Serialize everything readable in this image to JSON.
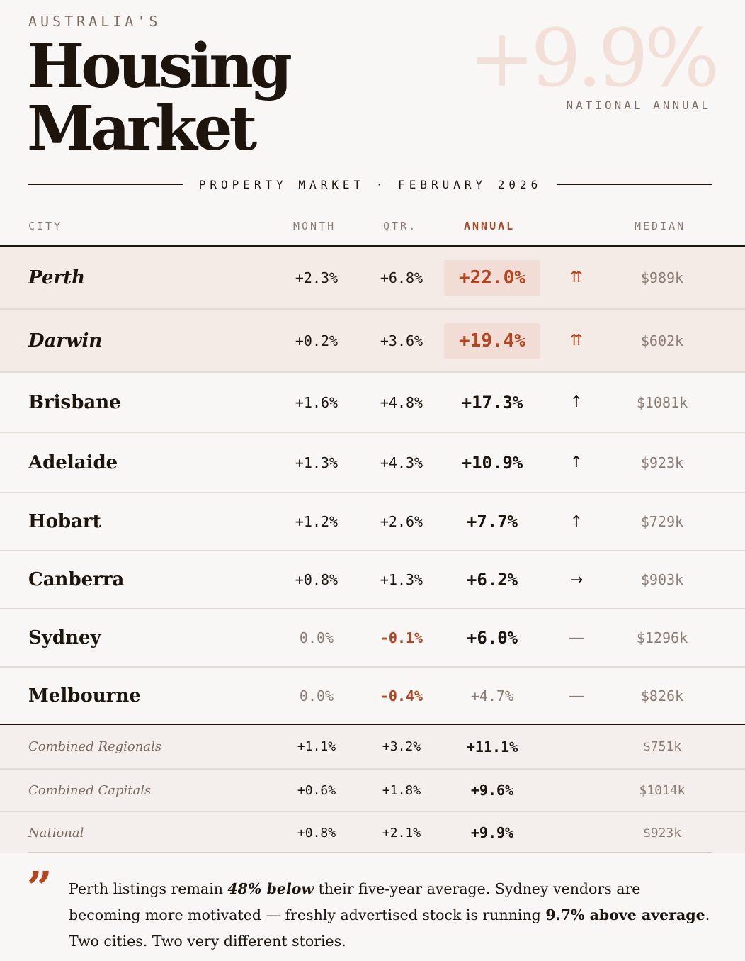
{
  "header": {
    "kicker": "AUSTRALIA'S",
    "title_line1": "Housing",
    "title_line2": "Market",
    "stat_value": "+9.9%",
    "stat_label": "NATIONAL ANNUAL",
    "dateline": "PROPERTY MARKET · FEBRUARY 2026"
  },
  "columns": {
    "city": "CITY",
    "month": "MONTH",
    "qtr": "QTR.",
    "annual": "ANNUAL",
    "median": "MEDIAN"
  },
  "rows": [
    {
      "city": "Perth",
      "month": "+2.3%",
      "qtr": "+6.8%",
      "annual": "+22.0%",
      "trend": "⇈",
      "median": "$989k"
    },
    {
      "city": "Darwin",
      "month": "+0.2%",
      "qtr": "+3.6%",
      "annual": "+19.4%",
      "trend": "⇈",
      "median": "$602k"
    },
    {
      "city": "Brisbane",
      "month": "+1.6%",
      "qtr": "+4.8%",
      "annual": "+17.3%",
      "trend": "↑",
      "median": "$1081k"
    },
    {
      "city": "Adelaide",
      "month": "+1.3%",
      "qtr": "+4.3%",
      "annual": "+10.9%",
      "trend": "↑",
      "median": "$923k"
    },
    {
      "city": "Hobart",
      "month": "+1.2%",
      "qtr": "+2.6%",
      "annual": "+7.7%",
      "trend": "↑",
      "median": "$729k"
    },
    {
      "city": "Canberra",
      "month": "+0.8%",
      "qtr": "+1.3%",
      "annual": "+6.2%",
      "trend": "→",
      "median": "$903k"
    },
    {
      "city": "Sydney",
      "month": "0.0%",
      "qtr": "-0.1%",
      "annual": "+6.0%",
      "trend": "—",
      "median": "$1296k"
    },
    {
      "city": "Melbourne",
      "month": "0.0%",
      "qtr": "-0.4%",
      "annual": "+4.7%",
      "trend": "—",
      "median": "$826k"
    }
  ],
  "summary": [
    {
      "label": "Combined Regionals",
      "month": "+1.1%",
      "qtr": "+3.2%",
      "annual": "+11.1%",
      "median": "$751k"
    },
    {
      "label": "Combined Capitals",
      "month": "+0.6%",
      "qtr": "+1.8%",
      "annual": "+9.6%",
      "median": "$1014k"
    },
    {
      "label": "National",
      "month": "+0.8%",
      "qtr": "+2.1%",
      "annual": "+9.9%",
      "median": "$923k"
    }
  ],
  "quote": {
    "mark": "”",
    "p1": "Perth listings remain ",
    "b1": "48% below",
    "p2": " their five-year average. Sydney vendors are becoming more motivated — freshly advertised stock is running ",
    "b2": "9.7% above average",
    "p3": ". Two cities. Two very different stories."
  },
  "colors": {
    "accent": "#b5441f",
    "highlight_bg": "#f4ebe7",
    "ink": "#1c140d",
    "muted": "#8c7c73"
  }
}
